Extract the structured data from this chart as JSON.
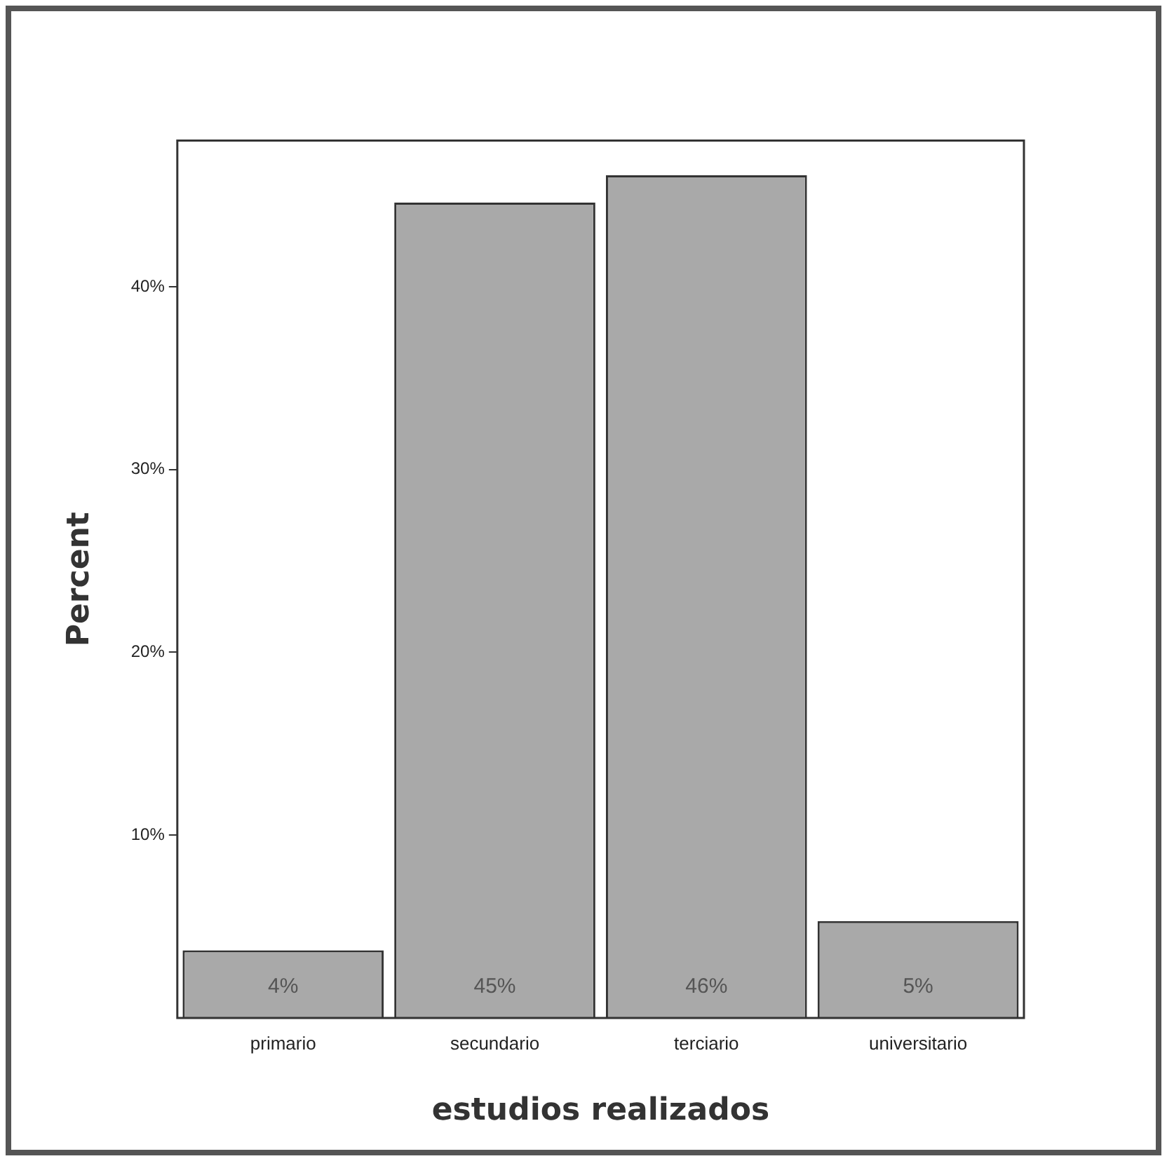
{
  "chart_data": {
    "type": "bar",
    "xlabel": "estudios realizados",
    "ylabel": "Percent",
    "categories": [
      "primario",
      "secundario",
      "terciario",
      "universitario"
    ],
    "values": [
      3.7,
      44.6,
      46.1,
      5.3
    ],
    "value_labels": [
      "4%",
      "45%",
      "46%",
      "5%"
    ],
    "color": "#a9a9a9",
    "ylim": [
      0,
      48
    ],
    "yticks": [
      {
        "value": 10,
        "label": "10%"
      },
      {
        "value": 20,
        "label": "20%"
      },
      {
        "value": 30,
        "label": "30%"
      },
      {
        "value": 40,
        "label": "40%"
      }
    ],
    "grid": false,
    "legend": false
  }
}
